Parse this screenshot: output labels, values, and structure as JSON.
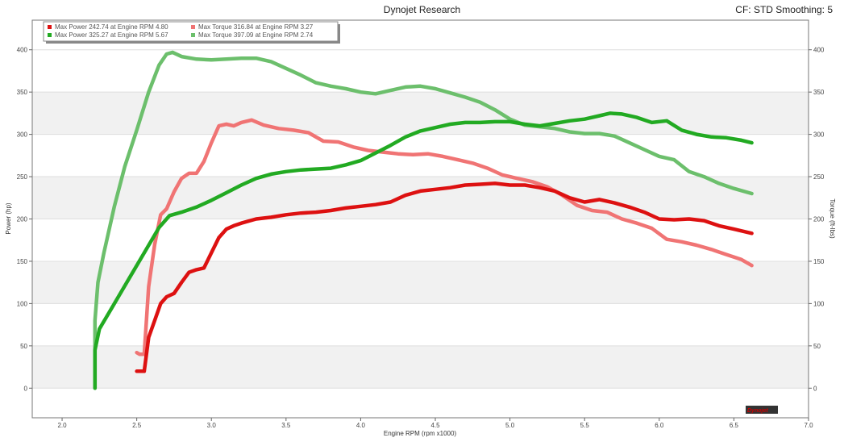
{
  "header": {
    "title": "Dynojet Research",
    "cf_info": "CF: STD Smoothing: 5"
  },
  "logo": {
    "text": "Dynojet",
    "color": "#cc0000"
  },
  "chart_data": {
    "type": "line",
    "xlabel": "Engine RPM (rpm x1000)",
    "ylabel_left": "Power (hp)",
    "ylabel_right": "Torque (ft-lbs)",
    "xlim": [
      1.8,
      7.0
    ],
    "ylim": [
      -35,
      435
    ],
    "x_ticks": [
      "2.0",
      "2.5",
      "3.0",
      "3.5",
      "4.0",
      "4.5",
      "5.0",
      "5.5",
      "6.0",
      "6.5",
      "7.0"
    ],
    "y_ticks": [
      "0",
      "50",
      "100",
      "150",
      "200",
      "250",
      "300",
      "350",
      "400"
    ],
    "grid": true,
    "legend_position": "top-left",
    "legend": [
      {
        "label": "Max Power",
        "value": "242.74",
        "at": "at Engine RPM",
        "rpm": "4.80",
        "color": "#dd1111"
      },
      {
        "label": "Max Power",
        "value": "325.27",
        "at": "at Engine RPM",
        "rpm": "5.67",
        "color": "#22aa22"
      },
      {
        "label": "Max Torque",
        "value": "316.84",
        "at": "at Engine RPM",
        "rpm": "3.27",
        "color": "#f07474"
      },
      {
        "label": "Max Torque",
        "value": "397.09",
        "at": "at Engine RPM",
        "rpm": "2.74",
        "color": "#6cbf6c"
      }
    ],
    "series": [
      {
        "color": "#6cbf6c",
        "x": [
          2.22,
          2.22,
          2.24,
          2.28,
          2.35,
          2.42,
          2.5,
          2.58,
          2.65,
          2.7,
          2.74,
          2.8,
          2.9,
          3.0,
          3.1,
          3.2,
          3.3,
          3.4,
          3.5,
          3.6,
          3.7,
          3.8,
          3.9,
          4.0,
          4.1,
          4.2,
          4.3,
          4.4,
          4.5,
          4.6,
          4.7,
          4.8,
          4.9,
          5.0,
          5.1,
          5.2,
          5.3,
          5.4,
          5.5,
          5.6,
          5.7,
          5.8,
          5.9,
          6.0,
          6.1,
          6.2,
          6.3,
          6.4,
          6.5,
          6.62
        ],
        "y": [
          0,
          80,
          125,
          160,
          215,
          262,
          305,
          350,
          382,
          395,
          397,
          392,
          389,
          388,
          389,
          390,
          390,
          386,
          378,
          370,
          361,
          357,
          354,
          350,
          348,
          352,
          356,
          357,
          354,
          349,
          344,
          338,
          329,
          318,
          311,
          309,
          307,
          303,
          301,
          301,
          298,
          290,
          282,
          274,
          270,
          256,
          250,
          242,
          236,
          230
        ]
      },
      {
        "color": "#22aa22",
        "x": [
          2.22,
          2.22,
          2.25,
          2.35,
          2.45,
          2.55,
          2.65,
          2.72,
          2.8,
          2.9,
          3.0,
          3.1,
          3.2,
          3.3,
          3.4,
          3.5,
          3.6,
          3.7,
          3.8,
          3.9,
          4.0,
          4.1,
          4.2,
          4.3,
          4.4,
          4.5,
          4.6,
          4.7,
          4.8,
          4.9,
          5.0,
          5.1,
          5.2,
          5.3,
          5.4,
          5.5,
          5.6,
          5.67,
          5.75,
          5.85,
          5.95,
          6.05,
          6.15,
          6.25,
          6.35,
          6.45,
          6.55,
          6.62
        ],
        "y": [
          0,
          45,
          70,
          100,
          130,
          160,
          190,
          204,
          208,
          214,
          222,
          231,
          240,
          248,
          253,
          256,
          258,
          259,
          260,
          264,
          269,
          278,
          287,
          297,
          304,
          308,
          312,
          314,
          314,
          315,
          315,
          312,
          310,
          313,
          316,
          318,
          322,
          325,
          324,
          320,
          314,
          316,
          305,
          300,
          297,
          296,
          293,
          290
        ]
      },
      {
        "color": "#f07474",
        "x": [
          2.5,
          2.52,
          2.55,
          2.58,
          2.62,
          2.66,
          2.7,
          2.75,
          2.8,
          2.85,
          2.9,
          2.95,
          3.0,
          3.05,
          3.1,
          3.15,
          3.2,
          3.27,
          3.35,
          3.45,
          3.55,
          3.65,
          3.75,
          3.85,
          3.95,
          4.05,
          4.15,
          4.25,
          4.35,
          4.45,
          4.55,
          4.65,
          4.75,
          4.85,
          4.95,
          5.05,
          5.15,
          5.25,
          5.35,
          5.45,
          5.55,
          5.65,
          5.75,
          5.85,
          5.95,
          6.05,
          6.15,
          6.25,
          6.35,
          6.45,
          6.55,
          6.62
        ],
        "y": [
          42,
          40,
          40,
          120,
          170,
          205,
          212,
          232,
          248,
          254,
          254,
          268,
          290,
          310,
          312,
          310,
          314,
          317,
          311,
          307,
          305,
          302,
          292,
          291,
          285,
          281,
          279,
          277,
          276,
          277,
          274,
          270,
          266,
          260,
          252,
          248,
          244,
          238,
          228,
          216,
          210,
          208,
          200,
          195,
          189,
          176,
          173,
          169,
          164,
          158,
          152,
          145
        ]
      },
      {
        "color": "#dd1111",
        "x": [
          2.5,
          2.55,
          2.58,
          2.62,
          2.66,
          2.7,
          2.75,
          2.8,
          2.85,
          2.9,
          2.95,
          3.0,
          3.05,
          3.1,
          3.15,
          3.2,
          3.3,
          3.4,
          3.5,
          3.6,
          3.7,
          3.8,
          3.9,
          4.0,
          4.1,
          4.2,
          4.3,
          4.4,
          4.5,
          4.6,
          4.7,
          4.8,
          4.9,
          5.0,
          5.1,
          5.2,
          5.3,
          5.4,
          5.5,
          5.6,
          5.7,
          5.8,
          5.9,
          6.0,
          6.1,
          6.2,
          6.3,
          6.4,
          6.5,
          6.62
        ],
        "y": [
          20,
          20,
          60,
          80,
          100,
          108,
          112,
          125,
          137,
          140,
          142,
          160,
          178,
          188,
          192,
          195,
          200,
          202,
          205,
          207,
          208,
          210,
          213,
          215,
          217,
          220,
          228,
          233,
          235,
          237,
          240,
          241,
          242,
          240,
          240,
          237,
          233,
          225,
          220,
          223,
          219,
          214,
          208,
          200,
          199,
          200,
          198,
          192,
          188,
          183
        ]
      }
    ]
  }
}
